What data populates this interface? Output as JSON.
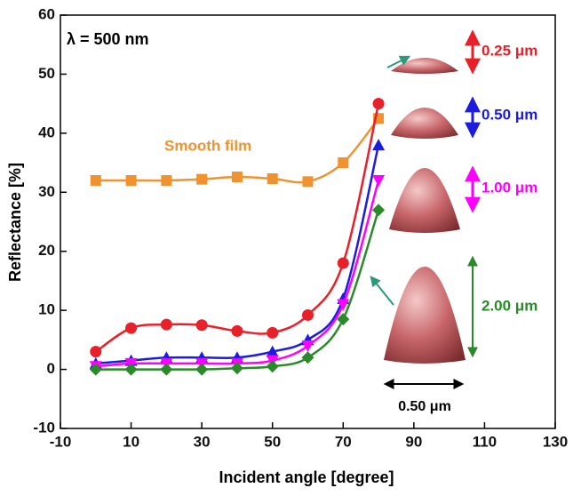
{
  "chart_data": {
    "type": "line",
    "x_label": "Incident angle [degree]",
    "y_label": "Reflectance [%]",
    "annotations": [
      "λ = 500 nm",
      "0.50 μm"
    ],
    "x": [
      0,
      10,
      20,
      30,
      40,
      50,
      60,
      70,
      80
    ],
    "series": [
      {
        "name": "Smooth film",
        "color": "#f0922e",
        "marker": "square",
        "values": [
          32,
          32,
          32,
          32.2,
          32.6,
          32.3,
          31.8,
          35,
          42.5
        ]
      },
      {
        "name": "0.25 μm",
        "color": "#e8202a",
        "marker": "circle",
        "values": [
          3,
          7,
          7.6,
          7.5,
          6.5,
          6.2,
          9.2,
          18,
          45
        ]
      },
      {
        "name": "0.50 μm",
        "color": "#1c1ce0",
        "marker": "triangle-up",
        "values": [
          1,
          1.5,
          2,
          2,
          2,
          3,
          5,
          12,
          38
        ]
      },
      {
        "name": "1.00 μm",
        "color": "#ff00ff",
        "marker": "triangle-down",
        "values": [
          0.5,
          1,
          1,
          1,
          1,
          1.5,
          4,
          11,
          32
        ]
      },
      {
        "name": "2.00 μm",
        "color": "#2a8a2a",
        "marker": "diamond",
        "values": [
          0,
          0,
          0,
          0,
          0.2,
          0.5,
          2,
          8.5,
          27
        ]
      }
    ],
    "xlim": [
      -10,
      130
    ],
    "xticks": [
      -10,
      10,
      30,
      50,
      70,
      90,
      110,
      130
    ],
    "ylim": [
      -10,
      60
    ],
    "yticks": [
      -10,
      0,
      10,
      20,
      30,
      40,
      50,
      60
    ]
  }
}
